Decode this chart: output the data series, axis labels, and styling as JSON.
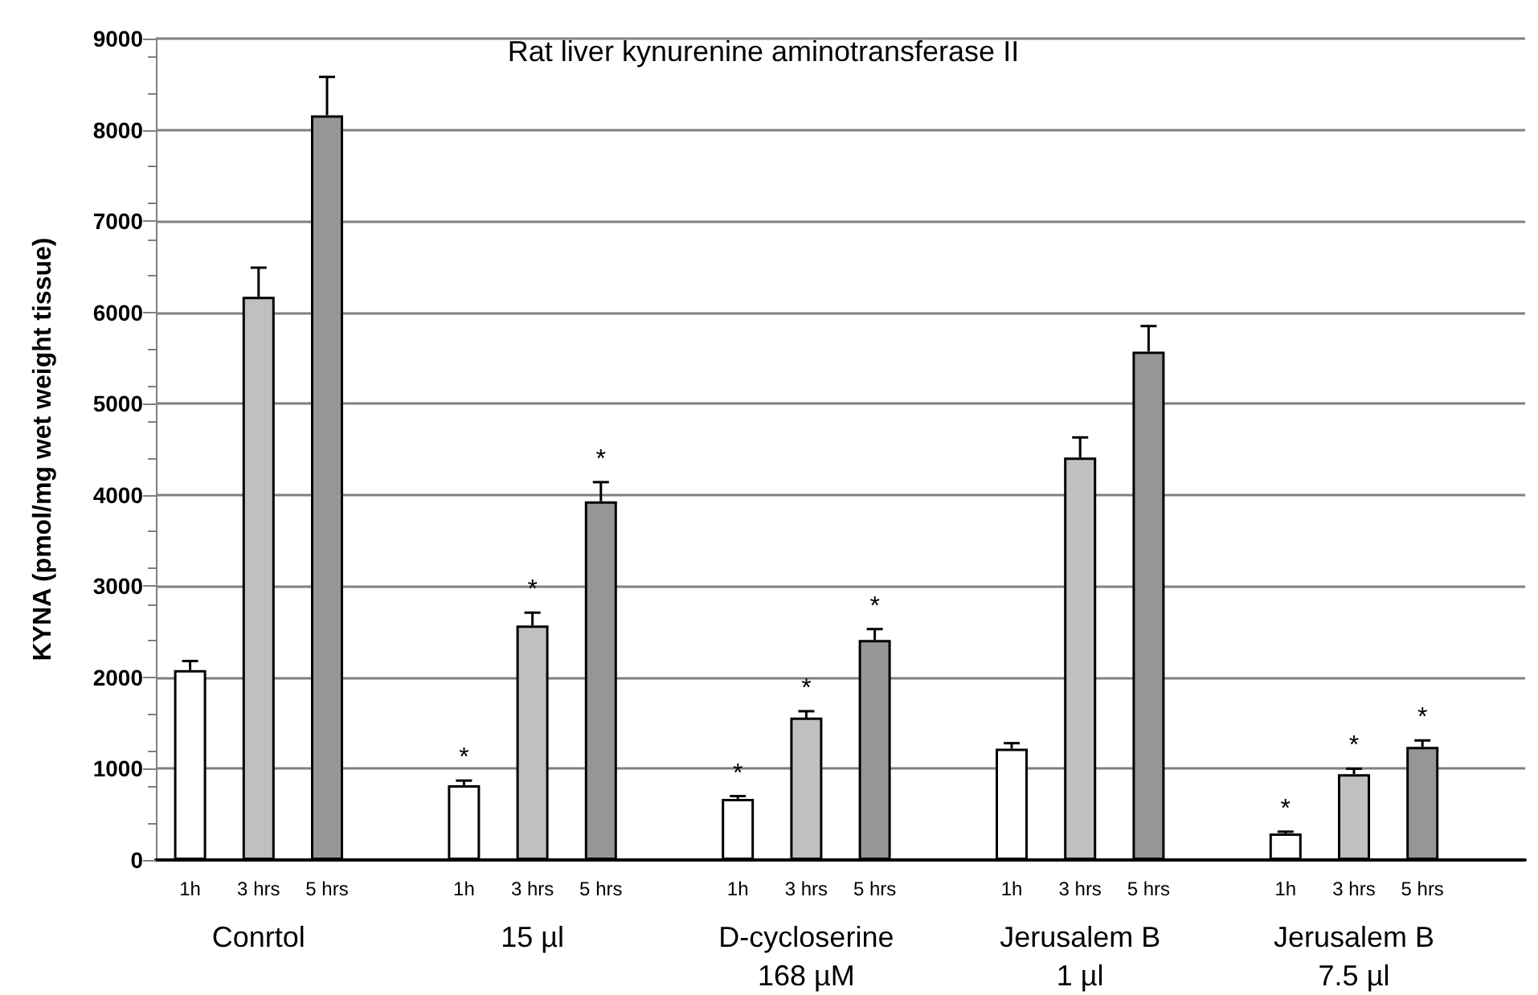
{
  "chart_data": {
    "type": "bar",
    "title": "Rat liver kynurenine aminotransferase II",
    "ylabel": "KYNA (pmol/mg wet weight tissue)",
    "categories": [
      "Conrtol",
      "15 µl",
      "D-cycloserine\n168 µM",
      "Jerusalem B\n1 µl",
      "Jerusalem B\n7.5 µl"
    ],
    "series": [
      {
        "name": "1h",
        "color": "#ffffff",
        "values": [
          2080,
          820,
          670,
          1220,
          290
        ],
        "errors": [
          100,
          50,
          30,
          60,
          20
        ],
        "value_labels": [
          null,
          "*",
          "*",
          null,
          "*"
        ]
      },
      {
        "name": "3 hrs",
        "color": "#c0c0c0",
        "values": [
          6170,
          2570,
          1560,
          4410,
          940
        ],
        "errors": [
          320,
          140,
          70,
          220,
          60
        ],
        "value_labels": [
          null,
          "*",
          "*",
          null,
          "*"
        ]
      },
      {
        "name": "5 hrs",
        "color": "#969696",
        "values": [
          8160,
          3930,
          2410,
          5570,
          1240
        ],
        "errors": [
          420,
          210,
          120,
          280,
          70
        ],
        "value_labels": [
          null,
          "*",
          "*",
          null,
          "*"
        ]
      }
    ],
    "ylim": [
      0,
      9000
    ],
    "yticks": [
      0,
      1000,
      2000,
      3000,
      4000,
      5000,
      6000,
      7000,
      8000,
      9000
    ],
    "grid": "y",
    "legend": false
  }
}
